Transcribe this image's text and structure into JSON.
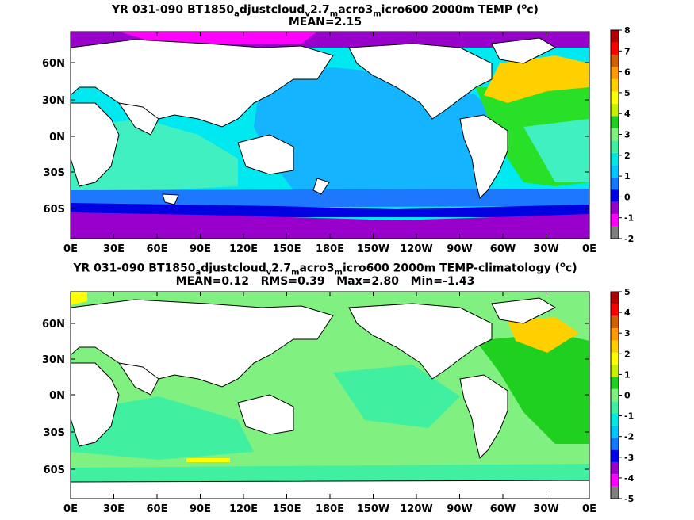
{
  "panel1": {
    "title_pre": "YR 031-090 BT1850",
    "title_parts": [
      {
        "t": "a",
        "sub": true
      },
      {
        "t": "djustcloud"
      },
      {
        "t": "v",
        "sub": true
      },
      {
        "t": "2.7"
      },
      {
        "t": "m",
        "sub": true
      },
      {
        "t": "acro3"
      },
      {
        "t": "m",
        "sub": true
      },
      {
        "t": "icro600 2000m TEMP ("
      },
      {
        "t": "o",
        "sup": true
      },
      {
        "t": "c)"
      }
    ],
    "stats": "MEAN=2.15",
    "colorbar_labels": [
      "8",
      "7",
      "6",
      "5",
      "4",
      "3",
      "2",
      "1",
      "0",
      "-1",
      "-2"
    ]
  },
  "panel2": {
    "title_pre": "YR 031-090 BT1850",
    "title_parts": [
      {
        "t": "a",
        "sub": true
      },
      {
        "t": "djustcloud"
      },
      {
        "t": "v",
        "sub": true
      },
      {
        "t": "2.7"
      },
      {
        "t": "m",
        "sub": true
      },
      {
        "t": "acro3"
      },
      {
        "t": "m",
        "sub": true
      },
      {
        "t": "icro600 2000m TEMP-climatology ("
      },
      {
        "t": "o",
        "sup": true
      },
      {
        "t": "c)"
      }
    ],
    "stats": "MEAN=0.12   RMS=0.39   Max=2.80   Min=-1.43",
    "colorbar_labels": [
      "5",
      "4",
      "3",
      "2",
      "1",
      "0",
      "-1",
      "-2",
      "-3",
      "-4",
      "-5"
    ]
  },
  "lon_labels": [
    "0E",
    "30E",
    "60E",
    "90E",
    "120E",
    "150E",
    "180E",
    "150W",
    "120W",
    "90W",
    "60W",
    "30W",
    "0E"
  ],
  "lat_labels": [
    "60N",
    "30N",
    "0N",
    "30S",
    "60S"
  ],
  "colorbar1_colors": [
    "#7f7f7f",
    "#ff00ff",
    "#9900cc",
    "#0000ee",
    "#1478ff",
    "#00c8ff",
    "#00e8e0",
    "#40f0a0",
    "#80f080",
    "#20d020",
    "#c8f000",
    "#ffff00",
    "#ffd000",
    "#ff9900",
    "#d06000",
    "#ff0000",
    "#b40000"
  ],
  "colorbar2_colors": [
    "#7f7f7f",
    "#ff00ff",
    "#9900cc",
    "#0000ee",
    "#1478ff",
    "#00c8ff",
    "#00e8e0",
    "#40f0a0",
    "#80f080",
    "#20d020",
    "#c8f000",
    "#ffff00",
    "#ffd000",
    "#ff9900",
    "#d06000",
    "#ff0000",
    "#b40000"
  ],
  "colors": {
    "p1_pacific": "#14b4ff",
    "p1_cyan": "#00e8f0",
    "p1_aqua": "#40f0c0",
    "p1_southern": "#1e78ff",
    "p1_deep": "#0000e0",
    "p1_purple": "#9900cc",
    "p1_green": "#28e028",
    "p1_yellow": "#ffd000",
    "p2_base": "#80f080",
    "p2_aqua": "#40f0a0",
    "p2_green": "#20d020",
    "p2_yellow": "#ffd000",
    "land": "#ffffff"
  }
}
